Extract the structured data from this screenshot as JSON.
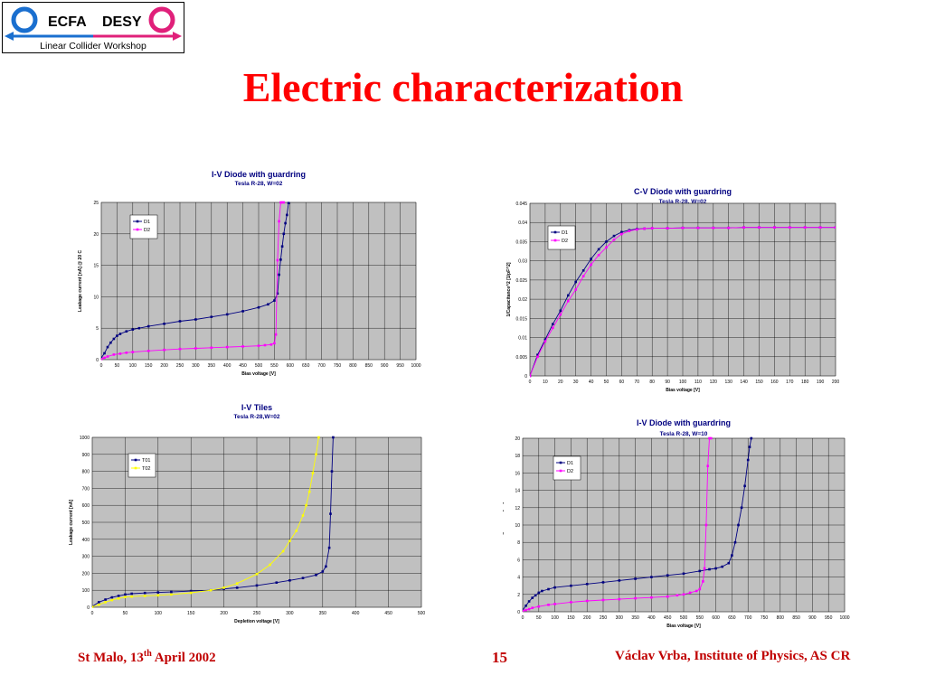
{
  "logo": {
    "left_word": "ECFA",
    "right_word": "DESY",
    "subtitle": "Linear Collider Workshop",
    "colors": {
      "blue": "#1a6fcf",
      "magenta": "#e0207a"
    }
  },
  "slide": {
    "title": "Electric characterization"
  },
  "footer": {
    "left_prefix": "St Malo, 13",
    "left_sup": "th",
    "left_suffix": " April 2002",
    "page": "15",
    "right": "Václav Vrba, Institute of Physics, AS CR"
  },
  "chart_data": [
    {
      "type": "line",
      "title": "I-V Diode with guardring",
      "subtitle": "Tesla R-28, W=02",
      "xlabel": "Bias voltage [V]",
      "ylabel": "Leakage current [nA] @ 20 C",
      "xlim": [
        0,
        1000
      ],
      "ylim": [
        0,
        25
      ],
      "xticks": [
        "0",
        "50",
        "100",
        "150",
        "200",
        "250",
        "300",
        "350",
        "400",
        "450",
        "500",
        "550",
        "600",
        "650",
        "700",
        "750",
        "800",
        "850",
        "900",
        "950",
        "1000"
      ],
      "yticks": [
        "0",
        "5",
        "10",
        "15",
        "20",
        "25"
      ],
      "grid": true,
      "legend_position": "top-left",
      "series": [
        {
          "name": "D1",
          "color": "#000080",
          "x": [
            0,
            10,
            20,
            30,
            40,
            50,
            60,
            80,
            100,
            120,
            150,
            200,
            250,
            300,
            350,
            400,
            450,
            500,
            530,
            550,
            560,
            565,
            570,
            575,
            580,
            585,
            590,
            595
          ],
          "y": [
            0.3,
            1.0,
            2.0,
            2.7,
            3.3,
            3.8,
            4.1,
            4.5,
            4.8,
            5.0,
            5.3,
            5.7,
            6.1,
            6.4,
            6.8,
            7.2,
            7.7,
            8.3,
            8.8,
            9.4,
            10.5,
            13.5,
            15.9,
            18.0,
            20.0,
            21.7,
            23.0,
            24.9
          ]
        },
        {
          "name": "D2",
          "color": "#ff00ff",
          "x": [
            0,
            10,
            20,
            40,
            60,
            80,
            100,
            150,
            200,
            250,
            300,
            350,
            400,
            450,
            500,
            520,
            540,
            550,
            555,
            560,
            565,
            570,
            575,
            580
          ],
          "y": [
            0.1,
            0.3,
            0.5,
            0.8,
            0.95,
            1.1,
            1.2,
            1.4,
            1.55,
            1.7,
            1.8,
            1.9,
            2.0,
            2.1,
            2.2,
            2.3,
            2.4,
            2.6,
            4.0,
            15.8,
            22.0,
            25.0,
            25.0,
            25.0
          ]
        }
      ]
    },
    {
      "type": "line",
      "title": "C-V Diode with guardring",
      "subtitle": "Tesla R-28, W=02",
      "xlabel": "Bias voltage [V]",
      "ylabel": "1/Capacitance^2 [1/pF^2]",
      "xlim": [
        0,
        200
      ],
      "ylim": [
        0,
        0.045
      ],
      "xticks": [
        "0",
        "10",
        "20",
        "30",
        "40",
        "50",
        "60",
        "70",
        "80",
        "90",
        "100",
        "110",
        "120",
        "130",
        "140",
        "150",
        "160",
        "170",
        "180",
        "190",
        "200"
      ],
      "yticks": [
        "0",
        "0.005",
        "0.01",
        "0.015",
        "0.02",
        "0.025",
        "0.03",
        "0.035",
        "0.04",
        "0.045"
      ],
      "grid": true,
      "legend_position": "top-left",
      "series": [
        {
          "name": "D1",
          "color": "#000080",
          "x": [
            0,
            5,
            10,
            15,
            20,
            25,
            30,
            35,
            40,
            45,
            50,
            55,
            60,
            65,
            70,
            75,
            80,
            90,
            100,
            110,
            120,
            130,
            140,
            150,
            160,
            170,
            180,
            190,
            200
          ],
          "y": [
            0.0,
            0.0055,
            0.0095,
            0.0135,
            0.017,
            0.021,
            0.0245,
            0.0275,
            0.0305,
            0.033,
            0.035,
            0.0365,
            0.0375,
            0.038,
            0.0383,
            0.0384,
            0.0385,
            0.0385,
            0.0386,
            0.0386,
            0.0386,
            0.0386,
            0.0387,
            0.0387,
            0.0387,
            0.0387,
            0.0387,
            0.0387,
            0.0387
          ]
        },
        {
          "name": "D2",
          "color": "#ff00ff",
          "x": [
            0,
            5,
            10,
            15,
            20,
            25,
            30,
            35,
            40,
            45,
            50,
            55,
            60,
            65,
            70,
            75,
            80,
            90,
            100,
            110,
            120,
            130,
            140,
            150,
            160,
            170,
            180,
            190,
            200
          ],
          "y": [
            0.0,
            0.005,
            0.009,
            0.0125,
            0.016,
            0.0195,
            0.0225,
            0.026,
            0.029,
            0.0315,
            0.0335,
            0.0355,
            0.037,
            0.0378,
            0.0382,
            0.0384,
            0.0385,
            0.0385,
            0.0386,
            0.0386,
            0.0386,
            0.0386,
            0.0387,
            0.0387,
            0.0387,
            0.0387,
            0.0387,
            0.0387,
            0.0387
          ]
        }
      ]
    },
    {
      "type": "line",
      "title": "I-V Tiles",
      "subtitle": "Tesla R-28,W=02",
      "xlabel": "Depletion voltage [V]",
      "ylabel": "Leakage current [nA]",
      "xlim": [
        0,
        500
      ],
      "ylim": [
        0,
        1000
      ],
      "xticks": [
        "0",
        "50",
        "100",
        "150",
        "200",
        "250",
        "300",
        "350",
        "400",
        "450",
        "500"
      ],
      "yticks": [
        "0",
        "100",
        "200",
        "300",
        "400",
        "500",
        "600",
        "700",
        "800",
        "900",
        "1000"
      ],
      "grid": true,
      "legend_position": "top-left",
      "series": [
        {
          "name": "T01",
          "color": "#000080",
          "x": [
            0,
            10,
            20,
            30,
            40,
            50,
            60,
            80,
            100,
            120,
            150,
            180,
            200,
            220,
            250,
            280,
            300,
            320,
            340,
            350,
            355,
            360,
            362,
            364,
            366
          ],
          "y": [
            5,
            30,
            45,
            58,
            67,
            75,
            80,
            84,
            87,
            90,
            95,
            100,
            108,
            115,
            128,
            145,
            158,
            172,
            190,
            210,
            240,
            350,
            550,
            800,
            1000
          ]
        },
        {
          "name": "T02",
          "color": "#ffff00",
          "x": [
            0,
            10,
            20,
            30,
            40,
            50,
            60,
            80,
            100,
            120,
            150,
            180,
            200,
            220,
            250,
            270,
            290,
            300,
            310,
            320,
            325,
            330,
            335,
            340,
            344
          ],
          "y": [
            2,
            15,
            30,
            42,
            52,
            60,
            63,
            67,
            70,
            75,
            85,
            100,
            115,
            140,
            195,
            250,
            330,
            390,
            450,
            540,
            600,
            680,
            790,
            900,
            1000
          ]
        }
      ]
    },
    {
      "type": "line",
      "title": "I-V Diode with guardring",
      "subtitle": "Tesla R-28, W=10",
      "xlabel": "Bias voltage [V]",
      "ylabel": "Leakage current [nA]",
      "xlim": [
        0,
        1000
      ],
      "ylim": [
        0,
        20
      ],
      "xticks": [
        "0",
        "50",
        "100",
        "150",
        "200",
        "250",
        "300",
        "350",
        "400",
        "450",
        "500",
        "550",
        "600",
        "650",
        "700",
        "750",
        "800",
        "850",
        "900",
        "950",
        "1000"
      ],
      "yticks": [
        "0",
        "2",
        "4",
        "6",
        "8",
        "10",
        "12",
        "14",
        "16",
        "18",
        "20"
      ],
      "grid": true,
      "legend_position": "top-left",
      "series": [
        {
          "name": "D1",
          "color": "#000080",
          "x": [
            0,
            10,
            20,
            30,
            40,
            50,
            60,
            80,
            100,
            150,
            200,
            250,
            300,
            350,
            400,
            450,
            500,
            550,
            580,
            600,
            620,
            640,
            650,
            660,
            670,
            680,
            690,
            700,
            705,
            710
          ],
          "y": [
            0.2,
            0.7,
            1.2,
            1.6,
            1.9,
            2.2,
            2.4,
            2.6,
            2.8,
            3.0,
            3.2,
            3.4,
            3.6,
            3.8,
            4.0,
            4.2,
            4.4,
            4.7,
            4.9,
            5.0,
            5.2,
            5.6,
            6.5,
            8.0,
            10.0,
            12.0,
            14.5,
            17.5,
            19.0,
            20.0
          ]
        },
        {
          "name": "D2",
          "color": "#ff00ff",
          "x": [
            0,
            10,
            20,
            30,
            50,
            80,
            100,
            150,
            200,
            250,
            300,
            350,
            400,
            450,
            480,
            500,
            520,
            540,
            550,
            560,
            565,
            570,
            575,
            580,
            585
          ],
          "y": [
            0.1,
            0.2,
            0.3,
            0.45,
            0.6,
            0.8,
            0.9,
            1.1,
            1.25,
            1.35,
            1.45,
            1.55,
            1.65,
            1.75,
            1.9,
            2.0,
            2.2,
            2.4,
            2.6,
            3.5,
            5.0,
            10.0,
            16.8,
            20.0,
            20.0
          ]
        }
      ]
    }
  ]
}
